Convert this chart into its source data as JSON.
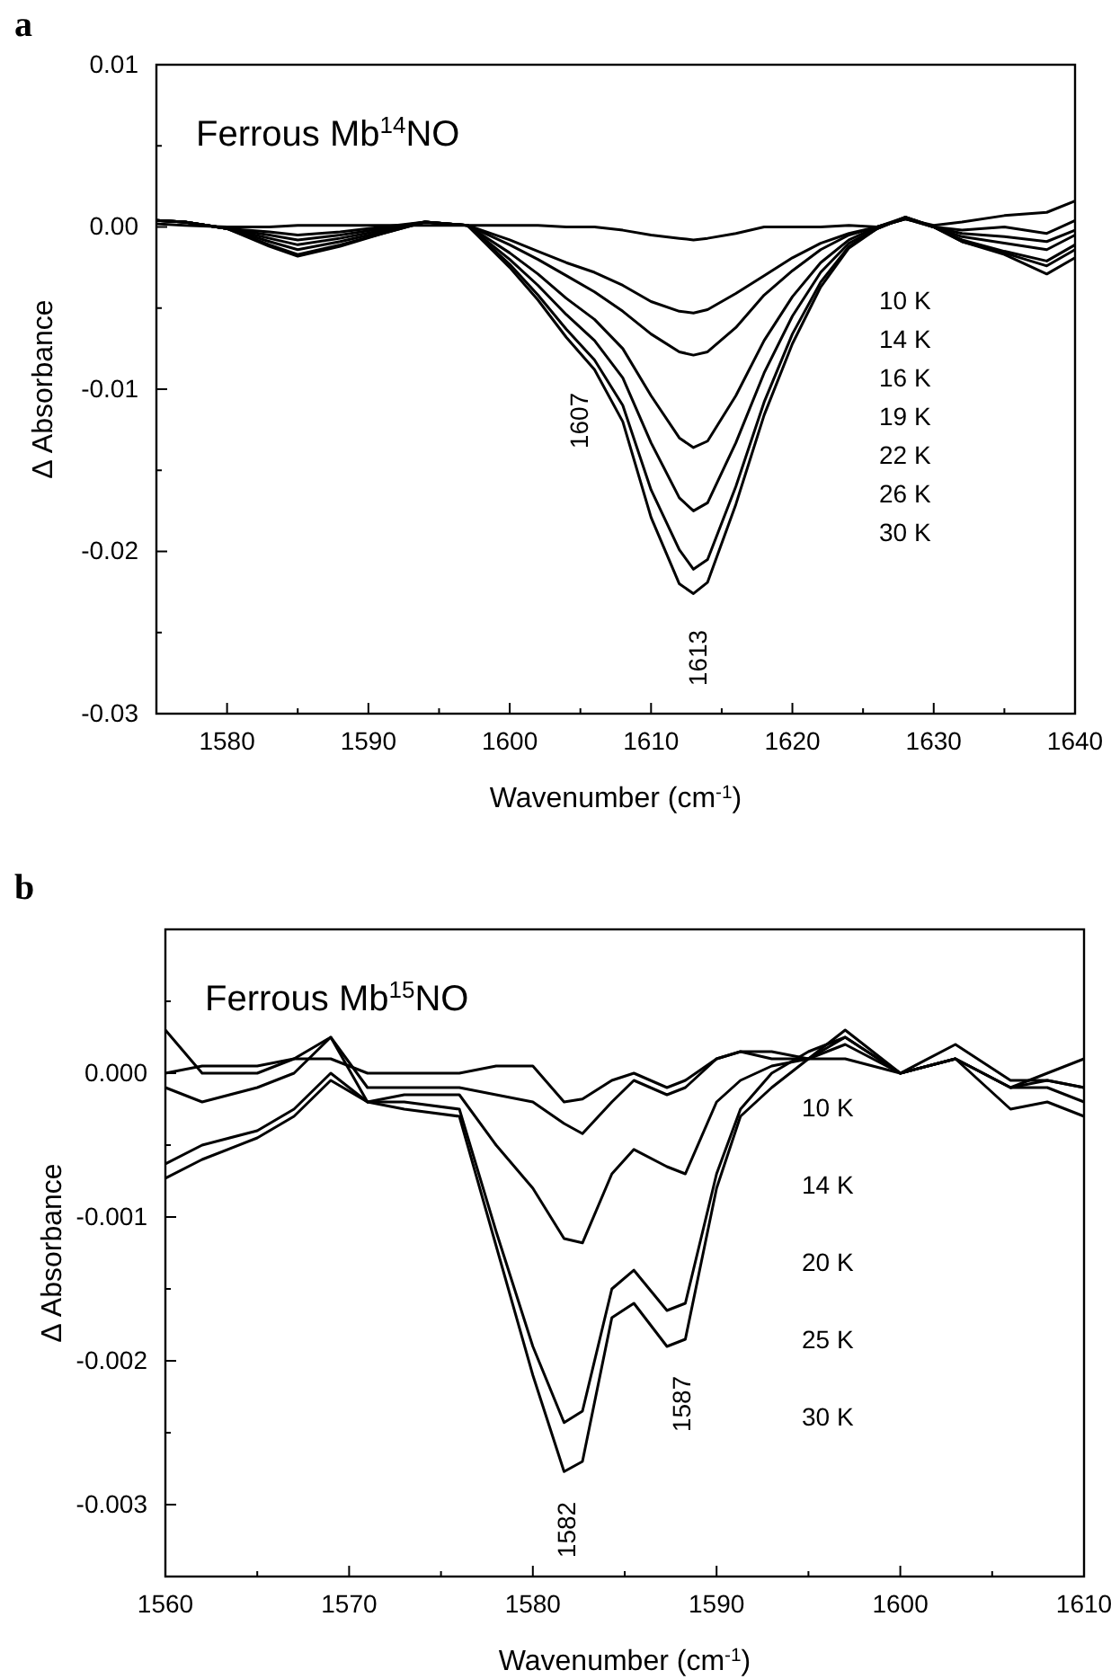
{
  "chart_data": [
    {
      "type": "line",
      "title": "Ferrous Mb$^{14}$NO",
      "xlabel": "Wavenumber (cm$^{-1}$)",
      "ylabel": "Δ Absorbance",
      "grid": false,
      "annotations": [
        "a",
        "1607",
        "1613",
        "10 K",
        "14 K",
        "16 K",
        "19 K",
        "22 K",
        "26 K",
        "30 K"
      ],
      "xlim": [
        1575,
        1640
      ],
      "xticks": [
        1580,
        {
          "value": 1585,
          "label": null
        },
        1590,
        {
          "value": 1595,
          "label": null
        },
        1600,
        {
          "value": 1605,
          "label": null
        },
        1610,
        {
          "value": 1615,
          "label": null
        },
        1620,
        {
          "value": 1625,
          "label": null
        },
        1630,
        {
          "value": 1635,
          "label": null
        },
        1640
      ],
      "ylim": [
        -0.03,
        0.01
      ],
      "yticks": [
        -0.03,
        {
          "value": -0.025,
          "label": null
        },
        -0.02,
        {
          "value": -0.015,
          "label": null
        },
        -0.01,
        {
          "value": -0.005,
          "label": null
        },
        {
          "value": 0,
          "label": "0.00"
        },
        {
          "value": 0.005,
          "label": null
        },
        0.01
      ],
      "x": [
        1575,
        1577,
        1580,
        1583,
        1585,
        1588,
        1591,
        1594,
        1597,
        1600,
        1602,
        1604,
        1606,
        1608,
        1610,
        1612,
        1613,
        1614,
        1616,
        1618,
        1620,
        1622,
        1624,
        1626,
        1628,
        1630,
        1632,
        1635,
        1638,
        1640
      ],
      "series": [
        {
          "color": "#000000",
          "values": [
            0.0002,
            0.0001,
            0,
            0,
            0.0001,
            0.0001,
            0.0001,
            0.0001,
            0.0001,
            0.0001,
            0.0001,
            0,
            0,
            -0.0002,
            -0.0005,
            -0.0007,
            -0.0008,
            -0.0007,
            -0.0004,
            0,
            0,
            0,
            0.0001,
            0,
            0.0005,
            0.0001,
            0.0003,
            0.0007,
            0.0009,
            0.0016
          ]
        },
        {
          "color": "#000000",
          "values": [
            0.0004,
            0.0003,
            -0.0001,
            -0.0003,
            -0.0005,
            -0.0003,
            0,
            0.0003,
            0.0001,
            -0.0008,
            -0.0015,
            -0.0022,
            -0.0028,
            -0.0036,
            -0.0046,
            -0.0052,
            -0.0053,
            -0.0051,
            -0.0041,
            -0.003,
            -0.0019,
            -0.001,
            -0.0004,
            0,
            0.0005,
            0,
            -0.0002,
            0,
            -0.0004,
            0.0004
          ]
        },
        {
          "color": "#000000",
          "values": [
            0.0004,
            0.0003,
            -0.0001,
            -0.0005,
            -0.0008,
            -0.0005,
            -0.0001,
            0.0003,
            0.0001,
            -0.0011,
            -0.002,
            -0.003,
            -0.004,
            -0.0052,
            -0.0066,
            -0.0077,
            -0.0079,
            -0.0077,
            -0.0062,
            -0.0042,
            -0.0027,
            -0.0014,
            -0.0005,
            0,
            0.0005,
            0,
            -0.0004,
            -0.0006,
            -0.0009,
            -0.0002
          ]
        },
        {
          "color": "#000000",
          "values": [
            0.0004,
            0.0003,
            -0.0001,
            -0.0007,
            -0.0011,
            -0.0007,
            -0.0002,
            0.0003,
            0.0001,
            -0.0016,
            -0.0029,
            -0.0044,
            -0.0057,
            -0.0075,
            -0.0104,
            -0.013,
            -0.0136,
            -0.0132,
            -0.0104,
            -0.007,
            -0.0043,
            -0.0022,
            -0.0008,
            0,
            0.0006,
            0,
            -0.0006,
            -0.001,
            -0.0014,
            -0.0005
          ]
        },
        {
          "color": "#000000",
          "values": [
            0.0004,
            0.0003,
            -0.0001,
            -0.0009,
            -0.0014,
            -0.0009,
            -0.0003,
            0.0003,
            0.0001,
            -0.002,
            -0.0036,
            -0.0054,
            -0.007,
            -0.0093,
            -0.0133,
            -0.0167,
            -0.0175,
            -0.017,
            -0.0133,
            -0.009,
            -0.0055,
            -0.0028,
            -0.001,
            -0.0001,
            0.0006,
            0,
            -0.0008,
            -0.0015,
            -0.0021,
            -0.0011
          ]
        },
        {
          "color": "#000000",
          "values": [
            0.0004,
            0.0003,
            -0.0001,
            -0.0011,
            -0.0017,
            -0.0011,
            -0.0004,
            0.0003,
            0.0001,
            -0.0023,
            -0.0042,
            -0.0063,
            -0.0082,
            -0.011,
            -0.0162,
            -0.0199,
            -0.0211,
            -0.0205,
            -0.016,
            -0.0108,
            -0.0066,
            -0.0034,
            -0.0012,
            -0.0001,
            0.0006,
            0,
            -0.0009,
            -0.0016,
            -0.0024,
            -0.0014
          ]
        },
        {
          "color": "#000000",
          "values": [
            0.0004,
            0.0003,
            -0.0001,
            -0.0012,
            -0.0018,
            -0.0012,
            -0.0004,
            0.0003,
            0.0001,
            -0.0025,
            -0.0045,
            -0.0068,
            -0.0088,
            -0.012,
            -0.0179,
            -0.022,
            -0.0226,
            -0.0219,
            -0.0171,
            -0.0116,
            -0.0072,
            -0.0037,
            -0.0013,
            -0.0001,
            0.0006,
            0,
            -0.0009,
            -0.0017,
            -0.0029,
            -0.0019
          ]
        }
      ]
    },
    {
      "type": "line",
      "title": "Ferrous Mb$^{15}$NO",
      "xlabel": "Wavenumber (cm$^{-1}$)",
      "ylabel": "Δ Absorbance",
      "grid": false,
      "annotations": [
        "b",
        "1582",
        "1587",
        "10 K",
        "14 K",
        "20 K",
        "25 K",
        "30 K"
      ],
      "xlim": [
        1560,
        1610
      ],
      "xticks": [
        1560,
        {
          "value": 1565,
          "label": null
        },
        1570,
        {
          "value": 1575,
          "label": null
        },
        1580,
        {
          "value": 1585,
          "label": null
        },
        1590,
        {
          "value": 1595,
          "label": null
        },
        1600,
        {
          "value": 1605,
          "label": null
        },
        1610
      ],
      "ylim": [
        -0.0035,
        0.001
      ],
      "yticks": [
        {
          "value": -0.0035,
          "label": null
        },
        -0.003,
        {
          "value": -0.0025,
          "label": null
        },
        -0.002,
        {
          "value": -0.0015,
          "label": null
        },
        -0.001,
        {
          "value": -0.0005,
          "label": null
        },
        {
          "value": 0,
          "label": "0.000"
        },
        {
          "value": 0.0005,
          "label": null
        }
      ],
      "x": [
        1560,
        1562,
        1565,
        1567,
        1569,
        1571,
        1573,
        1576,
        1578,
        1580,
        1581.7,
        1582.7,
        1584.3,
        1585.5,
        1587.3,
        1588.3,
        1590,
        1591.3,
        1593,
        1595,
        1597,
        1600,
        1603,
        1606,
        1608,
        1610
      ],
      "series": [
        {
          "color": "#000000",
          "values": [
            0,
            5e-05,
            5e-05,
            0.0001,
            0.0001,
            0,
            0,
            0,
            5e-05,
            5e-05,
            -0.0002,
            -0.00018,
            -5e-05,
            0,
            -0.0001,
            -5e-05,
            0.0001,
            0.00015,
            0.0001,
            0.0001,
            0.0001,
            0,
            0.0001,
            -0.0001,
            0,
            0.0001
          ]
        },
        {
          "color": "#000000",
          "values": [
            0.0003,
            0,
            0,
            0.0001,
            0.00025,
            -0.0001,
            -0.0001,
            -0.0001,
            -0.00015,
            -0.0002,
            -0.00035,
            -0.00042,
            -0.0002,
            -5e-05,
            -0.00015,
            -0.0001,
            0.0001,
            0.00015,
            0.00015,
            0.0001,
            0.00025,
            0,
            0.0001,
            -0.0001,
            -5e-05,
            -0.0001
          ]
        },
        {
          "color": "#000000",
          "values": [
            -0.0001,
            -0.0002,
            -0.0001,
            0,
            0.00025,
            -0.0002,
            -0.00015,
            -0.00015,
            -0.0005,
            -0.0008,
            -0.00115,
            -0.00118,
            -0.0007,
            -0.00053,
            -0.00065,
            -0.0007,
            -0.0002,
            -5e-05,
            5e-05,
            0.0001,
            0.0003,
            0,
            0.0002,
            -5e-05,
            -5e-05,
            -0.0001
          ]
        },
        {
          "color": "#000000",
          "values": [
            -0.00063,
            -0.0005,
            -0.0004,
            -0.00025,
            0,
            -0.0002,
            -0.0002,
            -0.00025,
            -0.0011,
            -0.0019,
            -0.00243,
            -0.00235,
            -0.0015,
            -0.00137,
            -0.00165,
            -0.0016,
            -0.0007,
            -0.00025,
            0,
            0.00015,
            0.00025,
            0,
            0.0001,
            -0.0001,
            -0.0001,
            -0.0002
          ]
        },
        {
          "color": "#000000",
          "values": [
            -0.00073,
            -0.0006,
            -0.00045,
            -0.0003,
            -5e-05,
            -0.0002,
            -0.00025,
            -0.0003,
            -0.0012,
            -0.0021,
            -0.00277,
            -0.0027,
            -0.0017,
            -0.0016,
            -0.0019,
            -0.00185,
            -0.0008,
            -0.0003,
            -0.0001,
            0.0001,
            0.0002,
            0,
            0.0001,
            -0.00025,
            -0.0002,
            -0.0003
          ]
        }
      ]
    }
  ]
}
